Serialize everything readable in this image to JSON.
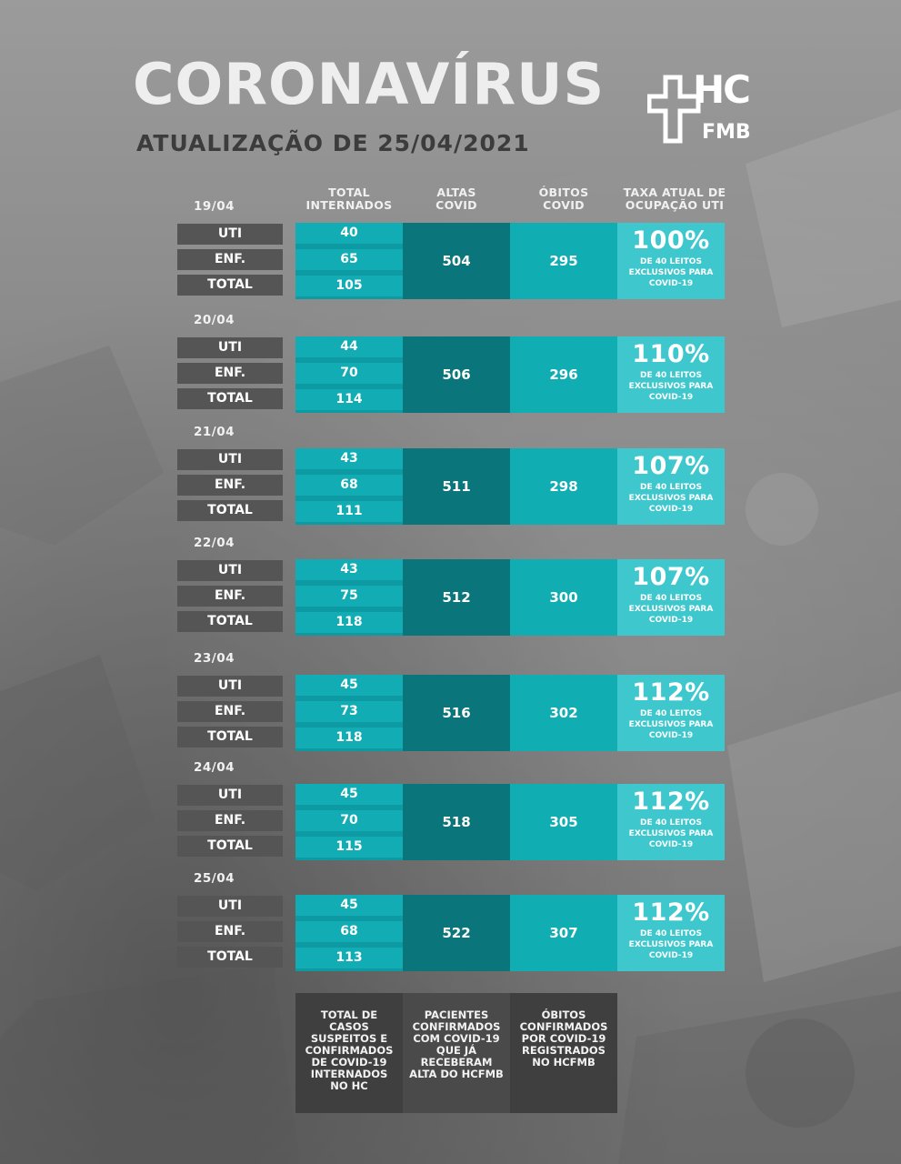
{
  "header": {
    "title": "CORONAVÍRUS",
    "subtitle": "ATUALIZAÇÃO DE 25/04/2021",
    "logo_top": "HC",
    "logo_bottom": "FMB"
  },
  "columns": [
    {
      "line1": "TOTAL",
      "line2": "INTERNADOS"
    },
    {
      "line1": "ALTAS",
      "line2": "COVID"
    },
    {
      "line1": "ÓBITOS",
      "line2": "COVID"
    },
    {
      "line1": "TAXA ATUAL DE",
      "line2": "OCUPAÇÃO UTI"
    }
  ],
  "row_labels": {
    "uti": "UTI",
    "enf": "ENF.",
    "total": "TOTAL"
  },
  "note": {
    "line1": "DE 40 LEITOS",
    "line2": "EXCLUSIVOS PARA",
    "line3": "COVID-19"
  },
  "days": [
    {
      "date": "19/04",
      "uti": "40",
      "enf": "65",
      "total": "105",
      "altas": "504",
      "obitos": "295",
      "taxa": "100%"
    },
    {
      "date": "20/04",
      "uti": "44",
      "enf": "70",
      "total": "114",
      "altas": "506",
      "obitos": "296",
      "taxa": "110%"
    },
    {
      "date": "21/04",
      "uti": "43",
      "enf": "68",
      "total": "111",
      "altas": "511",
      "obitos": "298",
      "taxa": "107%"
    },
    {
      "date": "22/04",
      "uti": "43",
      "enf": "75",
      "total": "118",
      "altas": "512",
      "obitos": "300",
      "taxa": "107%"
    },
    {
      "date": "23/04",
      "uti": "45",
      "enf": "73",
      "total": "118",
      "altas": "516",
      "obitos": "302",
      "taxa": "112%"
    },
    {
      "date": "24/04",
      "uti": "45",
      "enf": "70",
      "total": "115",
      "altas": "518",
      "obitos": "305",
      "taxa": "112%"
    },
    {
      "date": "25/04",
      "uti": "45",
      "enf": "68",
      "total": "113",
      "altas": "522",
      "obitos": "307",
      "taxa": "112%"
    }
  ],
  "legend": [
    [
      "TOTAL DE",
      "CASOS",
      "SUSPEITOS E",
      "CONFIRMADOS",
      "DE COVID-19",
      "INTERNADOS",
      "NO HC"
    ],
    [
      "PACIENTES",
      "CONFIRMADOS",
      "COM COVID-19",
      "QUE JÁ",
      "RECEBERAM",
      "ALTA DO HCFMB"
    ],
    [
      "ÓBITOS",
      "CONFIRMADOS",
      "POR COVID-19",
      "REGISTRADOS",
      "NO HCFMB"
    ]
  ]
}
